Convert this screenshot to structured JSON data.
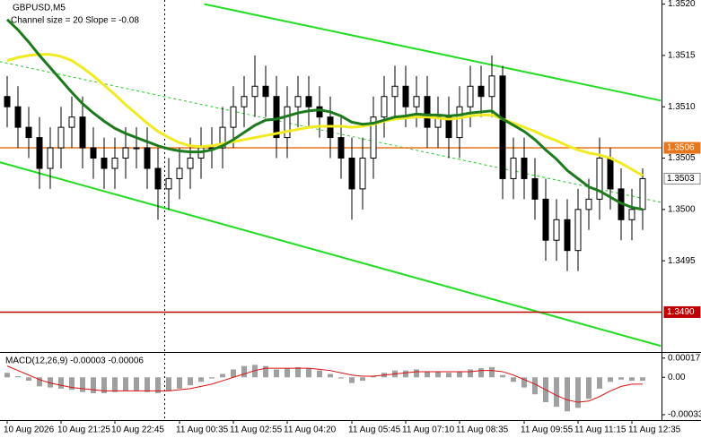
{
  "chart_data": [
    {
      "type": "candlestick",
      "title": "GBPUSD,M5",
      "subtitle": "Channel size = 20 Slope = -0.08",
      "categories": [
        "10 Aug 2026",
        null,
        null,
        null,
        null,
        "10 Aug 21:25",
        null,
        null,
        null,
        null,
        "10 Aug 22:45",
        null,
        null,
        null,
        null,
        null,
        "11 Aug 00:35",
        null,
        null,
        null,
        null,
        "11 Aug 02:55",
        null,
        null,
        null,
        null,
        "11 Aug 04:20",
        null,
        null,
        null,
        null,
        null,
        "11 Aug 05:45",
        null,
        null,
        null,
        null,
        "11 Aug 07:10",
        null,
        null,
        null,
        null,
        "11 Aug 08:35",
        null,
        null,
        null,
        null,
        null,
        "11 Aug 09:55",
        null,
        null,
        null,
        null,
        "11 Aug 11:15",
        null,
        null,
        null,
        null,
        "11 Aug 12:35",
        null
      ],
      "open": [
        1.3511,
        1.351,
        1.3508,
        1.3507,
        1.3504,
        1.3506,
        1.3508,
        1.3509,
        1.3506,
        1.3505,
        1.3504,
        1.3505,
        1.3506,
        1.3506,
        1.3504,
        1.3502,
        1.3503,
        1.3504,
        1.3505,
        1.3506,
        1.3506,
        1.3508,
        1.351,
        1.3511,
        1.3512,
        1.3511,
        1.3507,
        1.351,
        1.3511,
        1.351,
        1.3509,
        1.3507,
        1.3505,
        1.3502,
        1.3505,
        1.3509,
        1.3511,
        1.3512,
        1.351,
        1.3511,
        1.3508,
        1.3509,
        1.3507,
        1.351,
        1.3512,
        1.3511,
        1.3513,
        1.3503,
        1.3505,
        1.3503,
        1.3501,
        1.3497,
        1.3499,
        1.3496,
        1.35,
        1.3501,
        1.3505,
        1.3502,
        1.3499,
        1.35
      ],
      "high": [
        1.3513,
        1.3512,
        1.351,
        1.3509,
        1.3508,
        1.351,
        1.3511,
        1.3511,
        1.3508,
        1.3507,
        1.3507,
        1.3508,
        1.3508,
        1.3508,
        1.3506,
        1.3505,
        1.3506,
        1.3507,
        1.3508,
        1.3508,
        1.351,
        1.3512,
        1.3513,
        1.3515,
        1.3514,
        1.3513,
        1.3512,
        1.3513,
        1.3513,
        1.3512,
        1.3511,
        1.3509,
        1.3507,
        1.3507,
        1.3511,
        1.3513,
        1.3514,
        1.3514,
        1.3513,
        1.3513,
        1.3511,
        1.3511,
        1.3512,
        1.3514,
        1.3514,
        1.3515,
        1.3514,
        1.3507,
        1.3507,
        1.3505,
        1.3503,
        1.3501,
        1.3501,
        1.3502,
        1.3503,
        1.3507,
        1.3506,
        1.3504,
        1.3502,
        1.3504
      ],
      "low": [
        1.3508,
        1.3506,
        1.3505,
        1.3502,
        1.3502,
        1.3504,
        1.3506,
        1.3504,
        1.3503,
        1.3502,
        1.3502,
        1.3503,
        1.3504,
        1.3502,
        1.3499,
        1.35,
        1.3501,
        1.3502,
        1.3503,
        1.3504,
        1.3504,
        1.3506,
        1.3508,
        1.3509,
        1.3509,
        1.3505,
        1.3505,
        1.3508,
        1.3508,
        1.3507,
        1.3505,
        1.3503,
        1.3499,
        1.35,
        1.3503,
        1.3507,
        1.3509,
        1.3508,
        1.3508,
        1.3506,
        1.3506,
        1.3505,
        1.3505,
        1.3508,
        1.3509,
        1.3509,
        1.3501,
        1.3501,
        1.3501,
        1.3499,
        1.3495,
        1.3495,
        1.3494,
        1.3494,
        1.3498,
        1.3499,
        1.35,
        1.3497,
        1.3497,
        1.3498
      ],
      "close": [
        1.351,
        1.3508,
        1.3507,
        1.3504,
        1.3506,
        1.3508,
        1.3509,
        1.3506,
        1.3505,
        1.3504,
        1.3505,
        1.3506,
        1.3506,
        1.3504,
        1.3502,
        1.3503,
        1.3504,
        1.3505,
        1.3506,
        1.3506,
        1.3508,
        1.351,
        1.3511,
        1.3512,
        1.3511,
        1.3507,
        1.351,
        1.3511,
        1.351,
        1.3509,
        1.3507,
        1.3505,
        1.3502,
        1.3505,
        1.3509,
        1.3511,
        1.3512,
        1.351,
        1.3511,
        1.3508,
        1.3509,
        1.3507,
        1.351,
        1.3512,
        1.3511,
        1.3513,
        1.3503,
        1.3505,
        1.3503,
        1.3501,
        1.3497,
        1.3499,
        1.3496,
        1.35,
        1.3501,
        1.3505,
        1.3502,
        1.3499,
        1.35,
        1.3503
      ],
      "series": [
        {
          "color": "#f2ea22",
          "values": [
            1.35145,
            1.35148,
            1.3515,
            1.35151,
            1.35151,
            1.35149,
            1.35145,
            1.35138,
            1.3513,
            1.35121,
            1.35112,
            1.35102,
            1.35093,
            1.35084,
            1.35076,
            1.3507,
            1.35065,
            1.35062,
            1.35061,
            1.35062,
            1.35064,
            1.35066,
            1.35068,
            1.3507,
            1.35072,
            1.35074,
            1.35076,
            1.35078,
            1.3508,
            1.35081,
            1.35081,
            1.35081,
            1.3508,
            1.35081,
            1.35083,
            1.35086,
            1.35088,
            1.35089,
            1.3509,
            1.3509,
            1.35089,
            1.35088,
            1.35089,
            1.35091,
            1.35092,
            1.35092,
            1.35088,
            1.35084,
            1.3508,
            1.35076,
            1.35071,
            1.35067,
            1.35062,
            1.35058,
            1.35055,
            1.35053,
            1.3505,
            1.35045,
            1.35039,
            1.35033
          ]
        },
        {
          "color": "#1d7a1d",
          "values": [
            1.35185,
            1.35175,
            1.35163,
            1.3515,
            1.35138,
            1.35126,
            1.35114,
            1.35103,
            1.35094,
            1.35086,
            1.35079,
            1.35074,
            1.3507,
            1.35066,
            1.35062,
            1.35059,
            1.35057,
            1.35056,
            1.35056,
            1.35058,
            1.35062,
            1.35068,
            1.35075,
            1.35082,
            1.35087,
            1.35088,
            1.35091,
            1.35094,
            1.35096,
            1.35097,
            1.35095,
            1.35091,
            1.35085,
            1.35083,
            1.35084,
            1.35087,
            1.3509,
            1.35091,
            1.35093,
            1.35092,
            1.35092,
            1.35091,
            1.35092,
            1.35094,
            1.35095,
            1.35096,
            1.35088,
            1.35082,
            1.35076,
            1.35068,
            1.35058,
            1.35049,
            1.35038,
            1.3503,
            1.35022,
            1.35018,
            1.35012,
            1.35006,
            1.35002,
            1.35
          ]
        }
      ],
      "trend_lines": [
        {
          "start": [
            18.3,
            1.352
          ],
          "end": [
            60.7,
            1.35106
          ],
          "color": "#22dd22",
          "dashed": false
        },
        {
          "start": [
            -0.7,
            1.35046
          ],
          "end": [
            60.7,
            1.34867
          ],
          "color": "#22dd22",
          "dashed": false
        },
        {
          "start": [
            -0.7,
            1.35144
          ],
          "end": [
            60.7,
            1.35007
          ],
          "color": "#22cc22",
          "dashed": true
        }
      ],
      "price_lines": [
        {
          "value": 1.3506,
          "color": "#e8761c",
          "line": true
        },
        {
          "value": 1.3503,
          "color": "#ffffff",
          "line": false
        },
        {
          "value": 1.349,
          "label": "1.3490",
          "color": "#c00000",
          "line": true
        }
      ],
      "ylim": [
        1.34862,
        1.35204
      ],
      "yticks": [
        {
          "value": 1.352,
          "label": "1.3520"
        },
        {
          "value": 1.3515,
          "label": "1.3515"
        },
        {
          "value": 1.351,
          "label": "1.3510"
        },
        {
          "value": 1.3505,
          "label": "1.3505"
        },
        {
          "value": 1.35,
          "label": "1.3500"
        },
        {
          "value": 1.3495,
          "label": "1.3495"
        }
      ],
      "grid": false
    },
    {
      "type": "macd",
      "title": "MACD(12,26,9) -0.00003 -0.00006",
      "histogram": {
        "color": "#a0a0a0",
        "values": [
          4e-05,
          1e-05,
          -3e-05,
          -8e-05,
          -9e-05,
          -0.0001,
          -0.00011,
          -0.00013,
          -0.00014,
          -0.00014,
          -0.00013,
          -0.00012,
          -0.00012,
          -0.00013,
          -0.00014,
          -0.00012,
          -0.0001,
          -7e-05,
          -4e-05,
          -1e-05,
          3e-05,
          7e-05,
          0.0001,
          0.00011,
          0.0001,
          7e-05,
          8e-05,
          9e-05,
          8e-05,
          6e-05,
          3e-05,
          -1e-05,
          -5e-05,
          -3e-05,
          1e-05,
          4e-05,
          6e-05,
          6e-05,
          7e-05,
          5e-05,
          5e-05,
          4e-05,
          5e-05,
          7e-05,
          8e-05,
          9e-05,
          2e-05,
          -4e-05,
          -9e-05,
          -0.00015,
          -0.00022,
          -0.00026,
          -0.0003,
          -0.00027,
          -0.00019,
          -0.0001,
          -4e-05,
          -2e-05,
          -3e-05,
          -3e-05
        ]
      },
      "signal": {
        "color": "#dd1111",
        "values": [
          0.0001,
          6e-05,
          2e-05,
          -2e-05,
          -5e-05,
          -7e-05,
          -9e-05,
          -0.0001,
          -0.00011,
          -0.00012,
          -0.00012,
          -0.00012,
          -0.00012,
          -0.00012,
          -0.00012,
          -0.00012,
          -0.00011,
          -0.0001,
          -8e-05,
          -6e-05,
          -3e-05,
          0.0,
          3e-05,
          6e-05,
          8e-05,
          8e-05,
          8e-05,
          8e-05,
          8e-05,
          7e-05,
          6e-05,
          4e-05,
          2e-05,
          1e-05,
          1e-05,
          2e-05,
          3e-05,
          4e-05,
          5e-05,
          5e-05,
          5e-05,
          5e-05,
          5e-05,
          5e-05,
          6e-05,
          6e-05,
          5e-05,
          2e-05,
          -2e-05,
          -6e-05,
          -0.00011,
          -0.00016,
          -0.0002,
          -0.00022,
          -0.00021,
          -0.00017,
          -0.00012,
          -8e-05,
          -6e-05,
          -6e-05
        ]
      },
      "ylim": [
        -0.00037,
        0.0002
      ],
      "yticks": [
        0.00017,
        {
          "value": 0,
          "label": "0.00"
        },
        -0.00033
      ]
    }
  ]
}
